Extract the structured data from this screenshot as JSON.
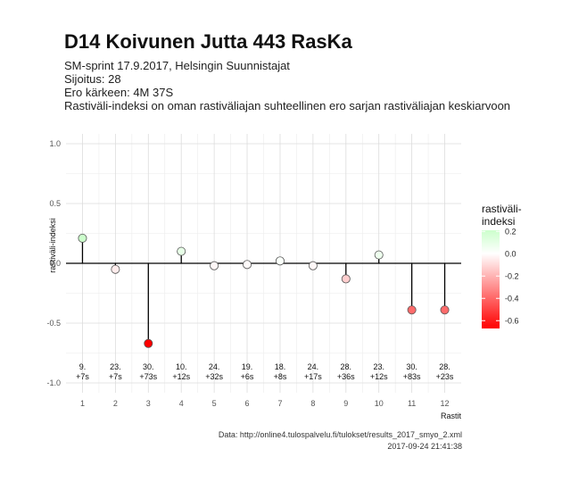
{
  "header": {
    "title": "D14 Koivunen Jutta 443 RasKa",
    "subtitle_lines": [
      "SM-sprint 17.9.2017, Helsingin Suunnistajat",
      "Sijoitus: 28",
      "Ero kärkeen: 4M 37S",
      "Rastiväli-indeksi on oman rastiväliajan suhteellinen ero sarjan rastiväliajan keskiarvoon"
    ]
  },
  "footer": {
    "source": "Data: http://online4.tulospalvelu.fi/tulokset/results_2017_smyo_2.xml",
    "timestamp": "2017-09-24 21:41:38"
  },
  "chart_data": {
    "type": "scatter",
    "title": "D14 Koivunen Jutta 443 RasKa",
    "xlabel": "Rastit",
    "ylabel": "rastiväli-indeksi",
    "x": [
      1,
      2,
      3,
      4,
      5,
      6,
      7,
      8,
      9,
      10,
      11,
      12
    ],
    "x_tick_labels": [
      "1",
      "2",
      "3",
      "4",
      "5",
      "6",
      "7",
      "8",
      "9",
      "10",
      "11",
      "12"
    ],
    "y": [
      0.21,
      -0.05,
      -0.67,
      0.1,
      -0.02,
      -0.01,
      0.02,
      -0.02,
      -0.13,
      0.07,
      -0.39,
      -0.39
    ],
    "y_ticks": [
      1.0,
      0.5,
      0.0,
      -0.5,
      -1.0
    ],
    "y_tick_labels": [
      "1.0",
      "0.5",
      "0.0",
      "-0.5",
      "-1.0"
    ],
    "ylim": [
      -1.0,
      1.0
    ],
    "point_labels": [
      [
        "9.",
        "+7s"
      ],
      [
        "23.",
        "+7s"
      ],
      [
        "30.",
        "+73s"
      ],
      [
        "10.",
        "+12s"
      ],
      [
        "24.",
        "+32s"
      ],
      [
        "19.",
        "+6s"
      ],
      [
        "18.",
        "+8s"
      ],
      [
        "24.",
        "+17s"
      ],
      [
        "28.",
        "+36s"
      ],
      [
        "23.",
        "+12s"
      ],
      [
        "30.",
        "+83s"
      ],
      [
        "28.",
        "+23s"
      ]
    ],
    "grid": true,
    "legend": {
      "title_lines": [
        "rastiväli-",
        "indeksi"
      ],
      "placement": "right",
      "ticks": [
        0.2,
        0.0,
        -0.2,
        -0.4,
        -0.6
      ],
      "tick_labels": [
        "0.2",
        "0.0",
        "-0.2",
        "-0.4",
        "-0.6"
      ],
      "range": [
        -0.67,
        0.21
      ],
      "colors": {
        "high": "#ccffcc",
        "mid": "#ffffff",
        "low": "#ff0000"
      }
    }
  }
}
